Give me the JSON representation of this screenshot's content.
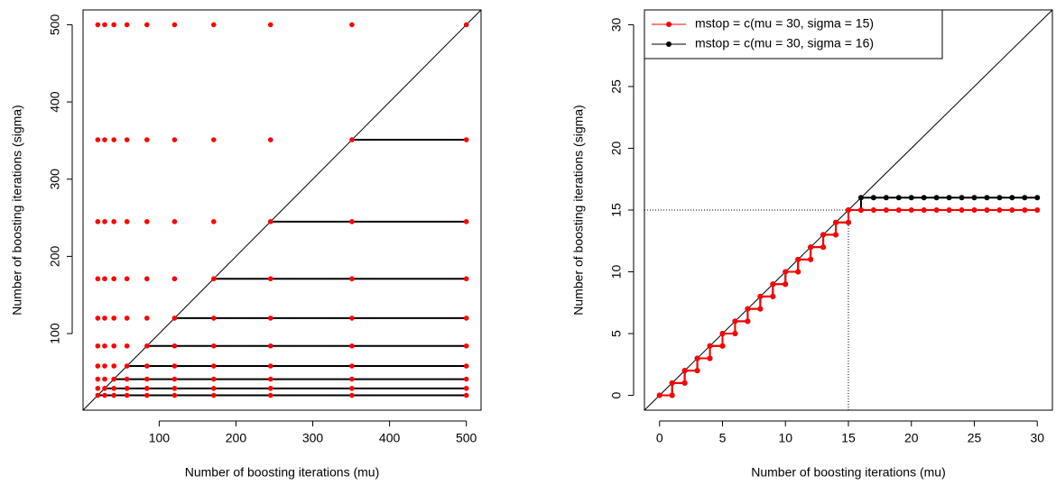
{
  "chart_data": [
    {
      "type": "grid",
      "xlabel": "Number of boosting iterations (mu)",
      "ylabel": "Number of boosting iterations (sigma)",
      "mu_values": [
        20,
        29,
        41,
        58,
        84,
        120,
        171,
        245,
        351,
        500
      ],
      "sigma_values": [
        20,
        29,
        41,
        58,
        84,
        120,
        171,
        245,
        351,
        500
      ],
      "point_color": "#ff0000",
      "line_color": "#000000",
      "xlim": [
        0.8,
        519.2
      ],
      "ylim": [
        0.8,
        519.2
      ],
      "xticks": [
        100,
        200,
        300,
        400,
        500
      ],
      "yticks": [
        100,
        200,
        300,
        400,
        500
      ]
    },
    {
      "type": "line",
      "xlabel": "Number of boosting iterations (mu)",
      "ylabel": "Number of boosting iterations (sigma)",
      "series": [
        {
          "name": "mstop = c(mu = 30, sigma = 15)",
          "color": "#ff0000",
          "x": [
            0,
            1,
            1,
            2,
            2,
            3,
            3,
            4,
            4,
            5,
            5,
            6,
            6,
            7,
            7,
            8,
            8,
            9,
            9,
            10,
            10,
            11,
            11,
            12,
            12,
            13,
            13,
            14,
            14,
            15,
            15,
            16,
            17,
            18,
            19,
            20,
            21,
            22,
            23,
            24,
            25,
            26,
            27,
            28,
            29,
            30
          ],
          "values": [
            0,
            0,
            1,
            1,
            2,
            2,
            3,
            3,
            4,
            4,
            5,
            5,
            6,
            6,
            7,
            7,
            8,
            8,
            9,
            9,
            10,
            10,
            11,
            11,
            12,
            12,
            13,
            13,
            14,
            14,
            15,
            15,
            15,
            15,
            15,
            15,
            15,
            15,
            15,
            15,
            15,
            15,
            15,
            15,
            15,
            15
          ]
        },
        {
          "name": "mstop = c(mu = 30, sigma = 16)",
          "color": "#000000",
          "x": [
            0,
            1,
            1,
            2,
            2,
            3,
            3,
            4,
            4,
            5,
            5,
            6,
            6,
            7,
            7,
            8,
            8,
            9,
            9,
            10,
            10,
            11,
            11,
            12,
            12,
            13,
            13,
            14,
            14,
            15,
            15,
            16,
            16,
            17,
            18,
            19,
            20,
            21,
            22,
            23,
            24,
            25,
            26,
            27,
            28,
            29,
            30
          ],
          "values": [
            0,
            0,
            1,
            1,
            2,
            2,
            3,
            3,
            4,
            4,
            5,
            5,
            6,
            6,
            7,
            7,
            8,
            8,
            9,
            9,
            10,
            10,
            11,
            11,
            12,
            12,
            13,
            13,
            14,
            14,
            15,
            15,
            16,
            16,
            16,
            16,
            16,
            16,
            16,
            16,
            16,
            16,
            16,
            16,
            16,
            16,
            16
          ]
        }
      ],
      "hline": 15,
      "vline": 15,
      "legend": "topleft",
      "xlim": [
        -1.2,
        31.2
      ],
      "ylim": [
        -1.2,
        31.2
      ],
      "xticks": [
        0,
        5,
        10,
        15,
        20,
        25,
        30
      ],
      "yticks": [
        0,
        5,
        10,
        15,
        20,
        25,
        30
      ]
    }
  ]
}
